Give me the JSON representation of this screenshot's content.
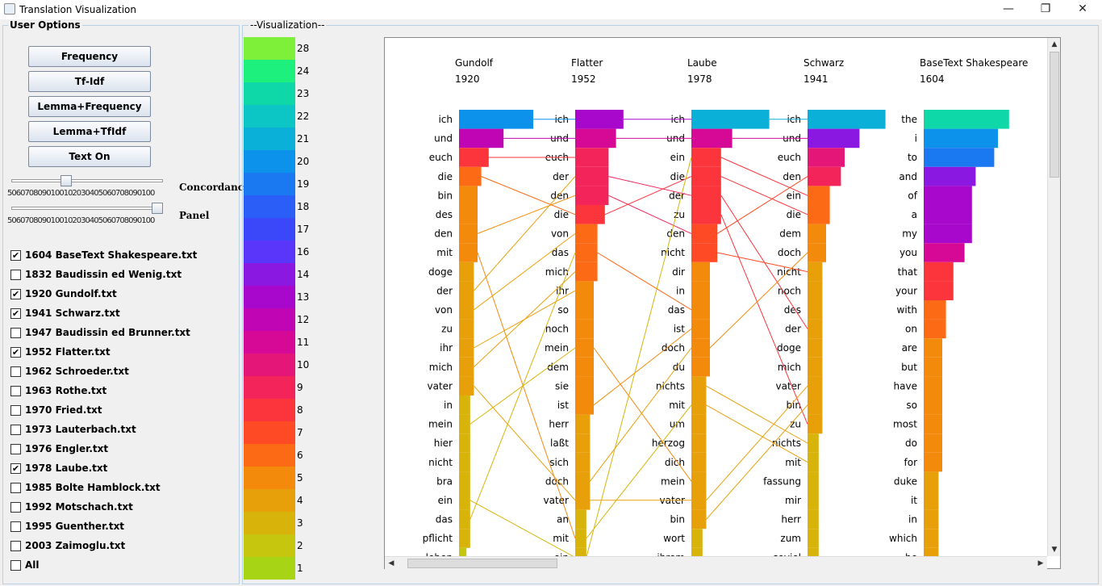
{
  "window": {
    "title": "Translation Visualization",
    "minimize": "—",
    "restore": "❐",
    "close": "✕"
  },
  "options": {
    "legend": "User Options",
    "buttons": [
      "Frequency",
      "Tf-Idf",
      "Lemma+Frequency",
      "Lemma+TfIdf",
      "Text On"
    ],
    "slider_ticks": "5060708090100102030405060708090100",
    "slider1_label": "Concordance",
    "slider2_label": "Panel",
    "slider1_value": 0.35,
    "slider2_value": 1.0,
    "files": [
      {
        "label": "1604 BaseText Shakespeare.txt",
        "checked": true
      },
      {
        "label": "1832 Baudissin ed Wenig.txt",
        "checked": false
      },
      {
        "label": "1920 Gundolf.txt",
        "checked": true
      },
      {
        "label": "1941 Schwarz.txt",
        "checked": true
      },
      {
        "label": "1947 Baudissin ed Brunner.txt",
        "checked": false
      },
      {
        "label": "1952 Flatter.txt",
        "checked": true
      },
      {
        "label": "1962 Schroeder.txt",
        "checked": false
      },
      {
        "label": "1963 Rothe.txt",
        "checked": false
      },
      {
        "label": "1970 Fried.txt",
        "checked": false
      },
      {
        "label": "1973 Lauterbach.txt",
        "checked": false
      },
      {
        "label": "1976 Engler.txt",
        "checked": false
      },
      {
        "label": "1978 Laube.txt",
        "checked": true
      },
      {
        "label": "1985 Bolte Hamblock.txt",
        "checked": false
      },
      {
        "label": "1992 Motschach.txt",
        "checked": false
      },
      {
        "label": "1995 Guenther.txt",
        "checked": false
      },
      {
        "label": "2003 Zaimoglu.txt",
        "checked": false
      },
      {
        "label": "All",
        "checked": false
      }
    ]
  },
  "visualization": {
    "legend": "--Visualization--",
    "scale": [
      {
        "v": "28",
        "c": "#7ef03a"
      },
      {
        "v": "24",
        "c": "#1ef07e"
      },
      {
        "v": "23",
        "c": "#0fd8a8"
      },
      {
        "v": "22",
        "c": "#0cc6c6"
      },
      {
        "v": "21",
        "c": "#0ab0d8"
      },
      {
        "v": "20",
        "c": "#0c92ea"
      },
      {
        "v": "19",
        "c": "#1a78f0"
      },
      {
        "v": "18",
        "c": "#2a5ef6"
      },
      {
        "v": "17",
        "c": "#3a48fa"
      },
      {
        "v": "16",
        "c": "#5a36fa"
      },
      {
        "v": "14",
        "c": "#8a18e0"
      },
      {
        "v": "13",
        "c": "#a808cc"
      },
      {
        "v": "12",
        "c": "#c006b4"
      },
      {
        "v": "11",
        "c": "#d60896"
      },
      {
        "v": "10",
        "c": "#e41678"
      },
      {
        "v": "9",
        "c": "#f2245a"
      },
      {
        "v": "8",
        "c": "#fc343c"
      },
      {
        "v": "7",
        "c": "#ff4a26"
      },
      {
        "v": "6",
        "c": "#fc6a16"
      },
      {
        "v": "5",
        "c": "#f48a0c"
      },
      {
        "v": "4",
        "c": "#e8a00a"
      },
      {
        "v": "3",
        "c": "#d8b40a"
      },
      {
        "v": "2",
        "c": "#c6c60e"
      },
      {
        "v": "1",
        "c": "#a8d416"
      }
    ],
    "columns": [
      {
        "name": "Gundolf",
        "year": "1920",
        "words": [
          "ich",
          "und",
          "euch",
          "die",
          "bin",
          "des",
          "den",
          "mit",
          "doge",
          "der",
          "von",
          "zu",
          "ihr",
          "mich",
          "vater",
          "in",
          "mein",
          "hier",
          "nicht",
          "bra",
          "ein",
          "das",
          "pflicht",
          "leben"
        ],
        "counts": [
          20,
          12,
          8,
          6,
          5,
          5,
          5,
          5,
          4,
          4,
          4,
          4,
          4,
          4,
          4,
          3,
          3,
          3,
          3,
          3,
          3,
          3,
          3,
          2
        ]
      },
      {
        "name": "Flatter",
        "year": "1952",
        "words": [
          "ich",
          "und",
          "euch",
          "der",
          "den",
          "die",
          "von",
          "das",
          "mich",
          "ihr",
          "so",
          "noch",
          "mein",
          "dem",
          "sie",
          "ist",
          "herr",
          "laßt",
          "sich",
          "doch",
          "vater",
          "an",
          "mit",
          "ein"
        ],
        "counts": [
          13,
          11,
          9,
          9,
          9,
          8,
          6,
          6,
          6,
          5,
          5,
          5,
          5,
          5,
          5,
          5,
          4,
          4,
          4,
          4,
          4,
          3,
          3,
          3
        ]
      },
      {
        "name": "Laube",
        "year": "1978",
        "words": [
          "ich",
          "und",
          "ein",
          "die",
          "der",
          "zu",
          "den",
          "nicht",
          "dir",
          "in",
          "das",
          "ist",
          "doch",
          "du",
          "nichts",
          "mit",
          "um",
          "herzog",
          "dich",
          "mein",
          "vater",
          "bin",
          "wort",
          "ihrem"
        ],
        "counts": [
          21,
          11,
          8,
          8,
          8,
          8,
          7,
          7,
          5,
          5,
          5,
          5,
          5,
          5,
          4,
          4,
          4,
          4,
          4,
          4,
          4,
          4,
          3,
          3
        ]
      },
      {
        "name": "Schwarz",
        "year": "1941",
        "words": [
          "ich",
          "und",
          "euch",
          "den",
          "ein",
          "die",
          "dem",
          "doch",
          "nicht",
          "noch",
          "des",
          "der",
          "doge",
          "mich",
          "vater",
          "bin",
          "zu",
          "nichts",
          "mit",
          "fassung",
          "mir",
          "herr",
          "zum",
          "soviel"
        ],
        "counts": [
          21,
          14,
          10,
          9,
          6,
          6,
          5,
          5,
          4,
          4,
          4,
          4,
          4,
          4,
          4,
          4,
          4,
          3,
          3,
          3,
          3,
          3,
          3,
          3
        ]
      },
      {
        "name": "BaseText Shakespeare",
        "year": "1604",
        "words": [
          "the",
          "i",
          "to",
          "and",
          "of",
          "a",
          "my",
          "you",
          "that",
          "your",
          "with",
          "on",
          "are",
          "but",
          "have",
          "so",
          "most",
          "do",
          "for",
          "duke",
          "it",
          "in",
          "which",
          "be"
        ],
        "counts": [
          23,
          20,
          19,
          14,
          13,
          13,
          13,
          11,
          8,
          8,
          6,
          6,
          5,
          5,
          5,
          5,
          5,
          5,
          5,
          4,
          4,
          4,
          4,
          4
        ]
      }
    ]
  }
}
